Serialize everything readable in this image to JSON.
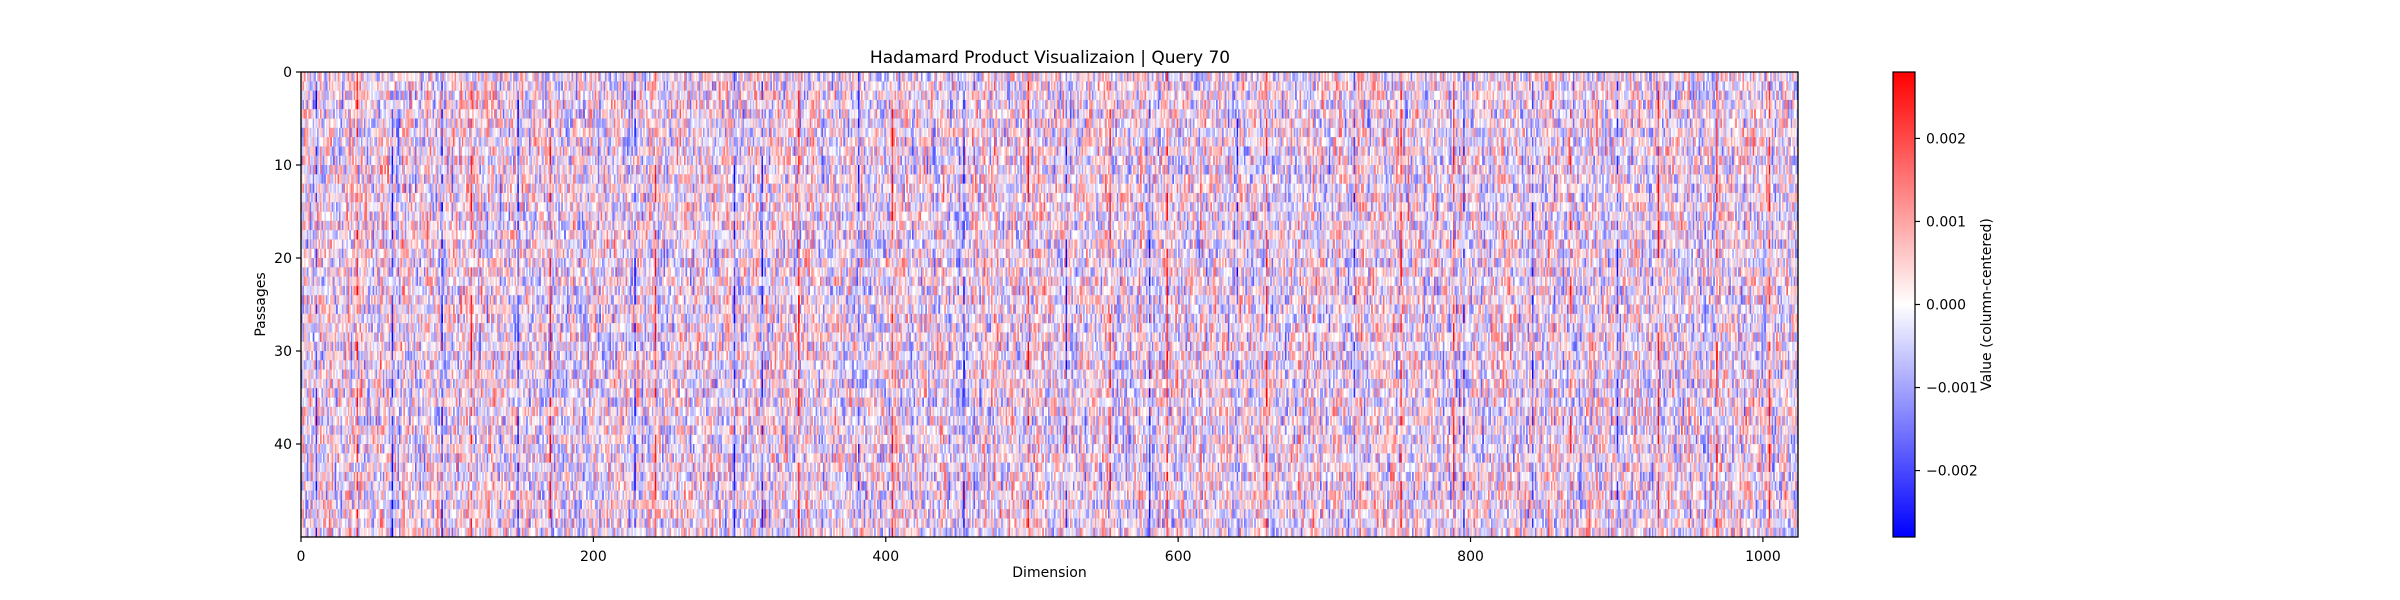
{
  "chart_data": {
    "type": "heatmap",
    "title": "Hadamard Product Visualizaion | Query 70",
    "xlabel": "Dimension",
    "ylabel": "Passages",
    "n_rows": 50,
    "n_cols": 1024,
    "xlim": [
      0,
      1024
    ],
    "ylim": [
      0,
      50
    ],
    "x_ticks": [
      0,
      200,
      400,
      600,
      800,
      1000
    ],
    "y_ticks": [
      0,
      10,
      20,
      30,
      40
    ],
    "colormap": "bwr",
    "colorbar": {
      "label": "Value (column-centered)",
      "vmin": -0.0028,
      "vmax": 0.0028,
      "ticks": [
        0.002,
        0.001,
        0.0,
        -0.001,
        -0.002
      ],
      "tick_labels": [
        "0.002",
        "0.001",
        "0.000",
        "−0.001",
        "−0.002"
      ]
    },
    "column_patterns": {
      "strong_blue_columns": [
        10,
        62,
        96,
        148,
        228,
        296,
        315,
        381,
        453,
        523,
        580,
        640,
        720,
        795,
        842,
        900
      ],
      "strong_red_columns": [
        38,
        116,
        170,
        242,
        340,
        404,
        497,
        553,
        592,
        660,
        752,
        788,
        868,
        928,
        968,
        1004
      ]
    },
    "colors": {
      "low": "#0000ff",
      "mid": "#ffffff",
      "high": "#ff0000"
    }
  }
}
